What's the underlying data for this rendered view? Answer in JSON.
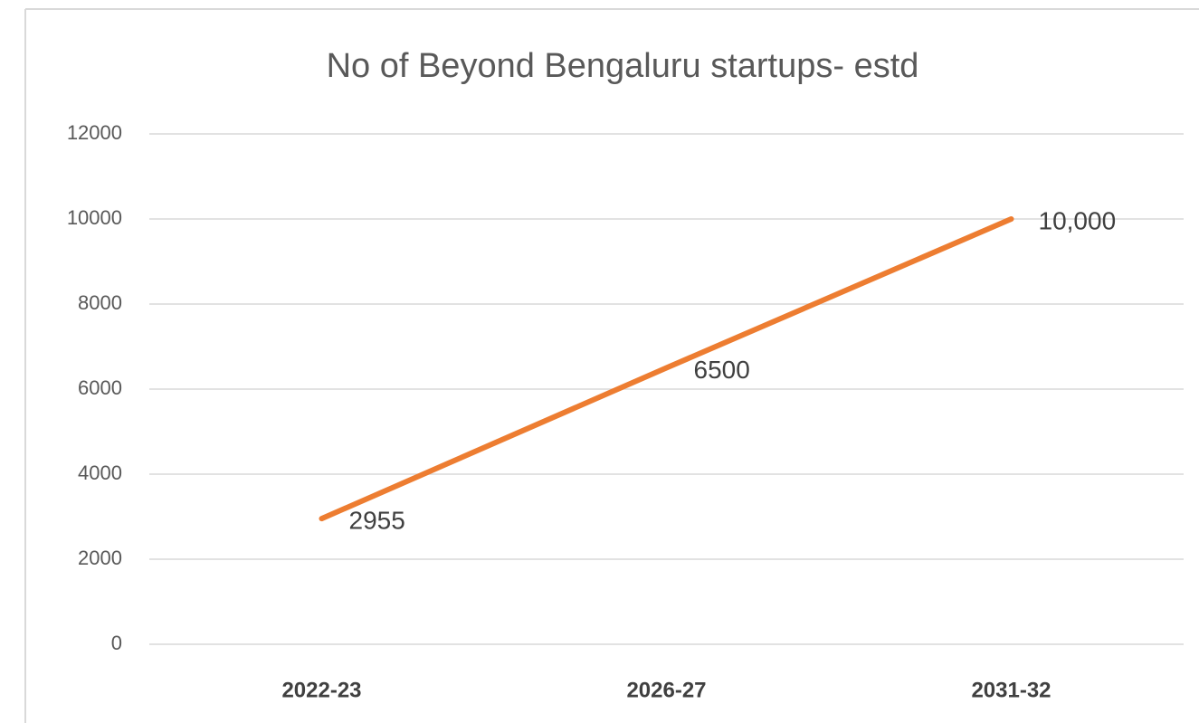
{
  "chart_data": {
    "type": "line",
    "title": "No of Beyond Bengaluru startups- estd",
    "categories": [
      "2022-23",
      "2026-27",
      "2031-32"
    ],
    "series": [
      {
        "name": "No of Beyond Bengaluru startups- estd",
        "color": "#ed7d31",
        "values": [
          2955,
          6500,
          10000
        ],
        "value_labels": [
          "2955",
          "6500",
          "10,000"
        ]
      }
    ],
    "ylim": [
      0,
      12000
    ],
    "yticks": [
      0,
      2000,
      4000,
      6000,
      8000,
      10000,
      12000
    ],
    "grid": true
  }
}
